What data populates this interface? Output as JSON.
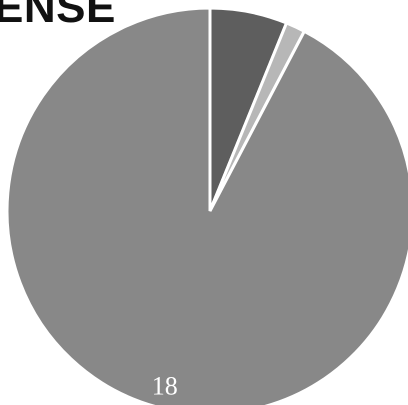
{
  "chart_data": {
    "type": "pie",
    "title": "ENSE",
    "start_angle_deg": 0,
    "direction": "clockwise",
    "slice_border_color": "#ffffff",
    "slices": [
      {
        "value": 1.2,
        "label": "",
        "color": "#5e5e5e"
      },
      {
        "value": 0.3,
        "label": "",
        "color": "#b7b7b7"
      },
      {
        "value": 18,
        "label": "18",
        "color": "#888888"
      }
    ]
  }
}
